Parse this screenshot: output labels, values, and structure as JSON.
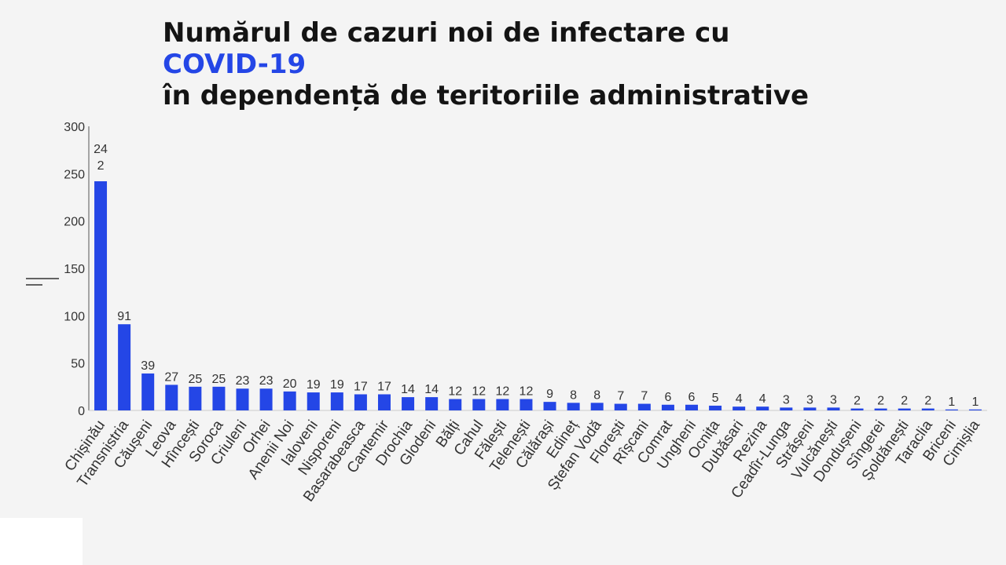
{
  "title": {
    "line1": "Numărul de cazuri noi de infectare cu",
    "line2": "COVID-19",
    "line3": "în dependență de teritoriile administrative"
  },
  "colors": {
    "bar": "#2446e6",
    "accent": "#2446e6",
    "axis": "#555555"
  },
  "chart_data": {
    "type": "bar",
    "categories": [
      "Chișinău",
      "Transnistria",
      "Căușeni",
      "Leova",
      "Hîncești",
      "Soroca",
      "Criuleni",
      "Orhei",
      "Anenii Noi",
      "Ialoveni",
      "Nisporeni",
      "Basarabeasca",
      "Cantemir",
      "Drochia",
      "Glodeni",
      "Bălți",
      "Cahul",
      "Fălești",
      "Telenești",
      "Călărași",
      "Edineț",
      "Ștefan Vodă",
      "Florești",
      "Rîșcani",
      "Comrat",
      "Ungheni",
      "Ocnița",
      "Dubăsari",
      "Rezina",
      "Ceadîr-Lunga",
      "Strășeni",
      "Vulcănești",
      "Dondușeni",
      "Sîngerei",
      "Șoldănești",
      "Taraclia",
      "Briceni",
      "Cimișlia"
    ],
    "values": [
      242,
      91,
      39,
      27,
      25,
      25,
      23,
      23,
      20,
      19,
      19,
      17,
      17,
      14,
      14,
      12,
      12,
      12,
      12,
      9,
      8,
      8,
      7,
      7,
      6,
      6,
      5,
      4,
      4,
      3,
      3,
      3,
      2,
      2,
      2,
      2,
      1,
      1
    ],
    "ylim": [
      0,
      300
    ],
    "yticks": [
      0,
      50,
      100,
      150,
      200,
      250,
      300
    ],
    "xlabel": "",
    "ylabel": "",
    "grid": false
  }
}
